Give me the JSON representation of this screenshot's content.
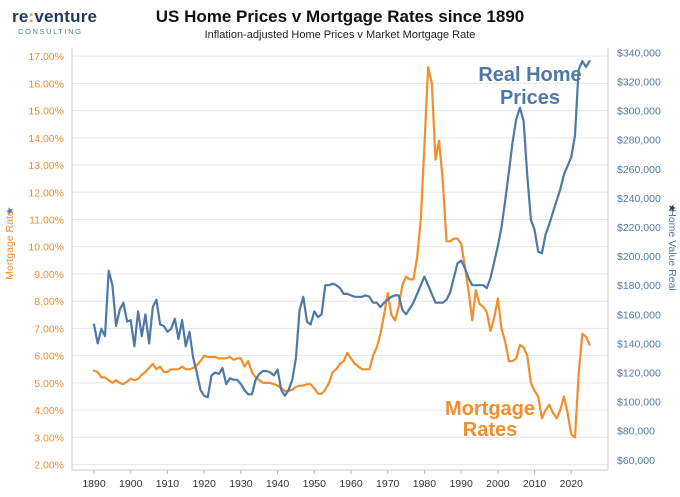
{
  "logo": {
    "brand_prefix": "re",
    "brand_mark": ":",
    "brand_suffix": "venture",
    "tagline": "CONSULTING"
  },
  "colors": {
    "mortgage": "#f28e2b",
    "home": "#4e79a7",
    "grid": "#e6e6e6",
    "axis_text_left": "#f28e2b",
    "axis_text_right": "#4e79a7"
  },
  "chart_data": {
    "type": "line",
    "title": "US Home Prices v Mortgage Rates since 1890",
    "subtitle": "Inflation-adjusted Home Prices v Market Mortgage Rate",
    "xlabel": "",
    "ylabel_left": "Mortgage Rate",
    "ylabel_right": "Home Value Real",
    "x_ticks": [
      1890,
      1900,
      1910,
      1920,
      1930,
      1940,
      1950,
      1960,
      1970,
      1980,
      1990,
      2000,
      2010,
      2020
    ],
    "xlim": [
      1884,
      2030
    ],
    "y_left_ticks": [
      "2.00%",
      "3.00%",
      "4.00%",
      "5.00%",
      "6.00%",
      "7.00%",
      "8.00%",
      "9.00%",
      "10.00%",
      "11.00%",
      "12.00%",
      "13.00%",
      "14.00%",
      "15.00%",
      "16.00%",
      "17.00%"
    ],
    "y_left_lim": [
      1.8,
      17.3
    ],
    "y_right_ticks": [
      "$60,000",
      "$80,000",
      "$100,000",
      "$120,000",
      "$140,000",
      "$160,000",
      "$180,000",
      "$200,000",
      "$220,000",
      "$240,000",
      "$260,000",
      "$280,000",
      "$300,000",
      "$320,000",
      "$340,000"
    ],
    "y_right_lim": [
      53000,
      343000
    ],
    "annotations": {
      "home_label_line1": "Real Home",
      "home_label_line2": "Prices",
      "mortgage_label_line1": "Mortgage",
      "mortgage_label_line2": "Rates"
    },
    "series": [
      {
        "name": "Mortgage Rates",
        "axis": "left",
        "x": [
          1890,
          1891,
          1892,
          1893,
          1894,
          1895,
          1896,
          1897,
          1898,
          1899,
          1900,
          1901,
          1902,
          1903,
          1904,
          1905,
          1906,
          1907,
          1908,
          1909,
          1910,
          1911,
          1912,
          1913,
          1914,
          1915,
          1916,
          1917,
          1918,
          1919,
          1920,
          1921,
          1922,
          1923,
          1924,
          1925,
          1926,
          1927,
          1928,
          1929,
          1930,
          1931,
          1932,
          1933,
          1934,
          1935,
          1936,
          1937,
          1938,
          1939,
          1940,
          1941,
          1942,
          1943,
          1944,
          1945,
          1946,
          1947,
          1948,
          1949,
          1950,
          1951,
          1952,
          1953,
          1954,
          1955,
          1956,
          1957,
          1958,
          1959,
          1960,
          1961,
          1962,
          1963,
          1964,
          1965,
          1966,
          1967,
          1968,
          1969,
          1970,
          1971,
          1972,
          1973,
          1974,
          1975,
          1976,
          1977,
          1978,
          1979,
          1980,
          1981,
          1982,
          1983,
          1984,
          1985,
          1986,
          1987,
          1988,
          1989,
          1990,
          1991,
          1992,
          1993,
          1994,
          1995,
          1996,
          1997,
          1998,
          1999,
          2000,
          2001,
          2002,
          2003,
          2004,
          2005,
          2006,
          2007,
          2008,
          2009,
          2010,
          2011,
          2012,
          2013,
          2014,
          2015,
          2016,
          2017,
          2018,
          2019,
          2020,
          2021,
          2022,
          2023,
          2024,
          2025
        ],
        "values": [
          5.45,
          5.4,
          5.2,
          5.2,
          5.1,
          5.0,
          5.1,
          5.0,
          4.95,
          5.05,
          5.15,
          5.1,
          5.15,
          5.3,
          5.4,
          5.55,
          5.7,
          5.5,
          5.6,
          5.4,
          5.4,
          5.5,
          5.5,
          5.5,
          5.6,
          5.5,
          5.5,
          5.55,
          5.65,
          5.8,
          6.0,
          5.95,
          5.95,
          5.95,
          5.9,
          5.9,
          5.9,
          5.95,
          5.85,
          5.9,
          5.9,
          5.6,
          5.8,
          5.4,
          5.2,
          5.1,
          5.0,
          5.0,
          5.0,
          4.95,
          4.9,
          4.8,
          4.7,
          4.7,
          4.75,
          4.85,
          4.9,
          4.9,
          4.95,
          4.95,
          4.8,
          4.6,
          4.6,
          4.75,
          5.0,
          5.4,
          5.5,
          5.7,
          5.8,
          6.1,
          5.9,
          5.7,
          5.6,
          5.5,
          5.5,
          5.5,
          6.0,
          6.3,
          6.8,
          7.5,
          8.3,
          7.5,
          7.3,
          7.8,
          8.6,
          8.9,
          8.8,
          8.8,
          9.6,
          11.0,
          13.7,
          16.6,
          16.0,
          13.2,
          13.9,
          12.4,
          10.2,
          10.2,
          10.3,
          10.3,
          10.1,
          9.3,
          8.4,
          7.3,
          8.4,
          7.9,
          7.8,
          7.6,
          6.9,
          7.4,
          8.1,
          7.0,
          6.5,
          5.8,
          5.8,
          5.9,
          6.4,
          6.3,
          6.0,
          5.0,
          4.7,
          4.5,
          3.7,
          4.0,
          4.2,
          3.9,
          3.7,
          4.0,
          4.5,
          3.9,
          3.1,
          3.0,
          5.3,
          6.8,
          6.7,
          6.4
        ]
      },
      {
        "name": "Real Home Prices",
        "axis": "right",
        "x": [
          1890,
          1891,
          1892,
          1893,
          1894,
          1895,
          1896,
          1897,
          1898,
          1899,
          1900,
          1901,
          1902,
          1903,
          1904,
          1905,
          1906,
          1907,
          1908,
          1909,
          1910,
          1911,
          1912,
          1913,
          1914,
          1915,
          1916,
          1917,
          1918,
          1919,
          1920,
          1921,
          1922,
          1923,
          1924,
          1925,
          1926,
          1927,
          1928,
          1929,
          1930,
          1931,
          1932,
          1933,
          1934,
          1935,
          1936,
          1937,
          1938,
          1939,
          1940,
          1941,
          1942,
          1943,
          1944,
          1945,
          1946,
          1947,
          1948,
          1949,
          1950,
          1951,
          1952,
          1953,
          1954,
          1955,
          1956,
          1957,
          1958,
          1959,
          1960,
          1961,
          1962,
          1963,
          1964,
          1965,
          1966,
          1967,
          1968,
          1969,
          1970,
          1971,
          1972,
          1973,
          1974,
          1975,
          1976,
          1977,
          1978,
          1979,
          1980,
          1981,
          1982,
          1983,
          1984,
          1985,
          1986,
          1987,
          1988,
          1989,
          1990,
          1991,
          1992,
          1993,
          1994,
          1995,
          1996,
          1997,
          1998,
          1999,
          2000,
          2001,
          2002,
          2003,
          2004,
          2005,
          2006,
          2007,
          2008,
          2009,
          2010,
          2011,
          2012,
          2013,
          2014,
          2015,
          2016,
          2017,
          2018,
          2019,
          2020,
          2021,
          2022,
          2023,
          2024,
          2025
        ],
        "values": [
          153000,
          140000,
          150000,
          145000,
          190000,
          180000,
          152000,
          163000,
          168000,
          155000,
          156000,
          138000,
          162000,
          145000,
          160000,
          140000,
          165000,
          170000,
          153000,
          152000,
          148000,
          150000,
          157000,
          143000,
          156000,
          138000,
          148000,
          130000,
          120000,
          108000,
          104000,
          103000,
          118000,
          120000,
          119000,
          123000,
          112000,
          116000,
          115000,
          115000,
          112000,
          108000,
          105000,
          105000,
          115000,
          119000,
          121000,
          121000,
          120000,
          118000,
          122000,
          108000,
          104000,
          108000,
          115000,
          130000,
          163000,
          172000,
          155000,
          153000,
          162000,
          158000,
          160000,
          180000,
          180000,
          181000,
          180000,
          178000,
          174000,
          174000,
          173000,
          172000,
          172000,
          172000,
          173000,
          172000,
          168000,
          168000,
          165000,
          168000,
          170000,
          172000,
          173000,
          173000,
          163000,
          160000,
          164000,
          168000,
          174000,
          180000,
          186000,
          180000,
          174000,
          168000,
          168000,
          168000,
          170000,
          175000,
          185000,
          195000,
          197000,
          192000,
          185000,
          180000,
          180000,
          180000,
          180000,
          178000,
          185000,
          196000,
          207000,
          220000,
          238000,
          258000,
          278000,
          294000,
          302000,
          293000,
          256000,
          225000,
          218000,
          203000,
          202000,
          215000,
          222000,
          230000,
          238000,
          246000,
          256000,
          262000,
          268000,
          283000,
          328000,
          334000,
          330000,
          334000
        ]
      }
    ]
  }
}
